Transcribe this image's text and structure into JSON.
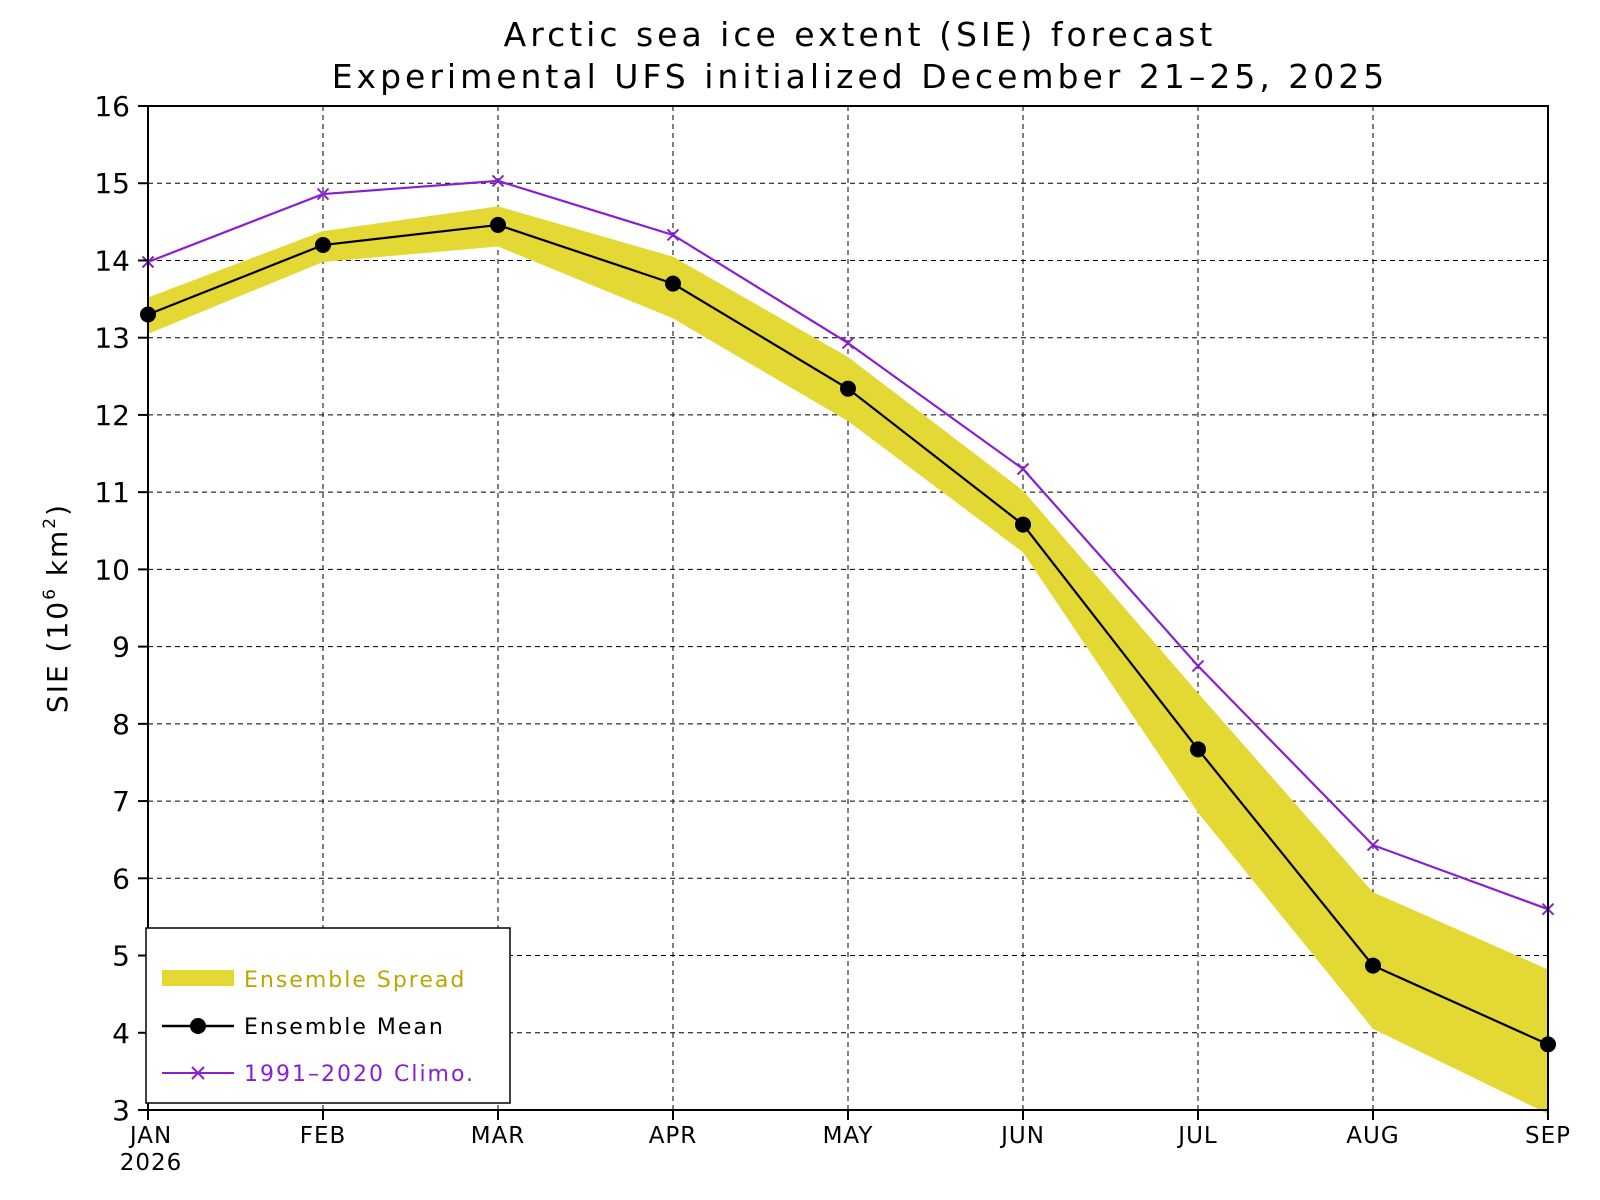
{
  "chart_data": {
    "type": "line",
    "title": "Arctic sea ice extent (SIE) forecast",
    "subtitle": "Experimental UFS initialized December 21–25, 2025",
    "ylabel_main": "SIE (10",
    "ylabel_exp": "6",
    "ylabel_unit": " km",
    "ylabel_unit_exp": "2",
    "ylabel_close": ")",
    "ylim": [
      3,
      16
    ],
    "yticks": [
      "3",
      "4",
      "5",
      "6",
      "7",
      "8",
      "9",
      "10",
      "11",
      "12",
      "13",
      "14",
      "15",
      "16"
    ],
    "categories": [
      "JAN",
      "FEB",
      "MAR",
      "APR",
      "MAY",
      "JUN",
      "JUL",
      "AUG",
      "SEP"
    ],
    "year_label": "2026",
    "grid": true,
    "legend_position": "bottom-left",
    "series": [
      {
        "name": "Ensemble Spread",
        "kind": "band",
        "color": "#e3d834",
        "text_color": "#b8a800",
        "lower": [
          13.05,
          13.98,
          14.18,
          13.25,
          11.92,
          10.22,
          6.85,
          4.05,
          2.95
        ],
        "upper": [
          13.52,
          14.38,
          14.7,
          14.05,
          12.75,
          11.02,
          8.4,
          5.82,
          4.82
        ]
      },
      {
        "name": "Ensemble Mean",
        "kind": "line-dot",
        "color": "#000000",
        "text_color": "#000000",
        "values": [
          13.3,
          14.2,
          14.46,
          13.7,
          12.34,
          10.58,
          7.67,
          4.87,
          3.85
        ]
      },
      {
        "name": "1991–2020 Climo.",
        "kind": "line-x",
        "color": "#8a1fd1",
        "text_color": "#8a1fd1",
        "values": [
          13.98,
          14.86,
          15.03,
          14.33,
          12.93,
          11.3,
          8.75,
          6.43,
          5.6
        ]
      }
    ]
  }
}
